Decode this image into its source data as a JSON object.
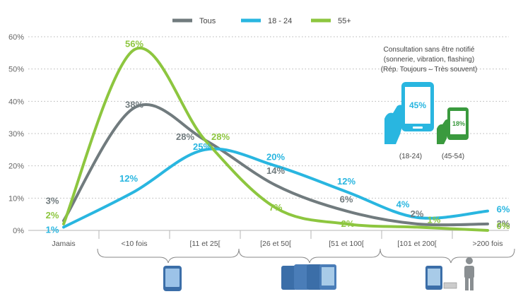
{
  "chart_data": {
    "type": "line",
    "categories": [
      "Jamais",
      "<10 fois",
      "[11 et 25[",
      "[26 et 50[",
      "[51 et 100[",
      "[101 et 200[",
      ">200 fois"
    ],
    "ylim": [
      0,
      60
    ],
    "yticks": [
      "0%",
      "10%",
      "20%",
      "30%",
      "40%",
      "50%",
      "60%"
    ],
    "grid": "horizontal-dotted",
    "legend_position": "top-center",
    "series": [
      {
        "name": "Tous",
        "color": "#717b7e",
        "values": [
          3,
          38,
          28,
          14,
          6,
          2,
          2
        ],
        "labels": [
          "3%",
          "38%",
          "28%",
          "14%",
          "6%",
          "2%",
          "2%"
        ]
      },
      {
        "name": "18 - 24",
        "color": "#29b6e0",
        "values": [
          1,
          12,
          25,
          20,
          12,
          4,
          6
        ],
        "labels": [
          "1%",
          "12%",
          "25%",
          "20%",
          "12%",
          "4%",
          "6%"
        ]
      },
      {
        "name": "55+",
        "color": "#8dc63f",
        "values": [
          2,
          56,
          28,
          7,
          2,
          1,
          0
        ],
        "labels": [
          "2%",
          "56%",
          "28%",
          "7%",
          "2%",
          "1%",
          "0%"
        ]
      }
    ]
  },
  "annotation": {
    "lines": [
      "Consultation sans être notifié",
      "(sonnerie, vibration, flashing)",
      "(Rép. Toujours – Très souvent)"
    ],
    "young": {
      "value": "45%",
      "caption": "(18-24)",
      "color": "#29b6e0"
    },
    "senior": {
      "value": "18%",
      "caption": "(45-54)",
      "color": "#3a9a3e"
    }
  }
}
